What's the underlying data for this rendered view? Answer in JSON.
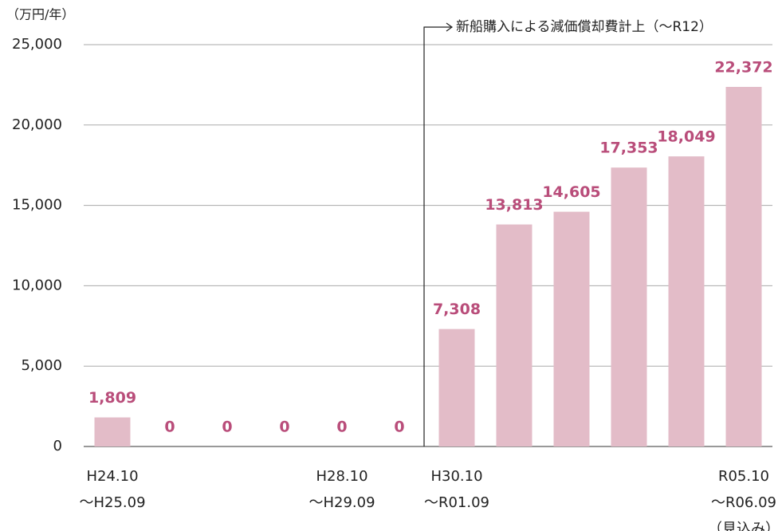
{
  "chart_data": {
    "type": "bar",
    "y_unit": "（万円/年）",
    "annotation": "新船購入による減価償却費計上（〜R12）",
    "categories": [
      "H24.10\n〜H25.09",
      null,
      null,
      null,
      "H28.10\n〜H29.09",
      null,
      "H30.10\n〜R01.09",
      null,
      null,
      null,
      null,
      "R05.10\n〜R06.09\n（見込み）"
    ],
    "values": [
      1809,
      0,
      0,
      0,
      0,
      0,
      7308,
      13813,
      14605,
      17353,
      18049,
      22372
    ],
    "value_labels": [
      "1,809",
      "0",
      "0",
      "0",
      "0",
      "0",
      "7,308",
      "13,813",
      "14,605",
      "17,353",
      "18,049",
      "22,372"
    ],
    "color": "#e3bcc8",
    "label_color": "#b94d7a",
    "ylim": [
      0,
      25000
    ],
    "yticks": [
      0,
      {
        "value": 5000,
        "label": "5,000"
      },
      {
        "value": 10000,
        "label": "10,000"
      },
      {
        "value": 15000,
        "label": "15,000"
      },
      {
        "value": 20000,
        "label": "20,000"
      },
      {
        "value": 25000,
        "label": "25,000"
      }
    ],
    "grid": true
  }
}
